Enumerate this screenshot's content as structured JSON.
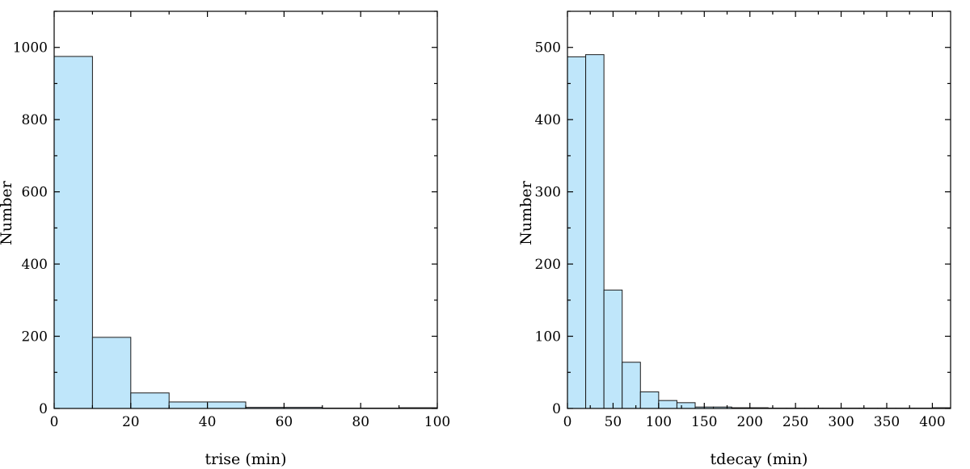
{
  "chart_data": [
    {
      "type": "bar",
      "xlabel": "trise (min)",
      "ylabel": "Number",
      "xlim": [
        0,
        100
      ],
      "ylim": [
        0,
        1100
      ],
      "xticks": [
        0,
        20,
        40,
        60,
        80,
        100
      ],
      "yticks": [
        0,
        200,
        400,
        600,
        800,
        1000
      ],
      "bin_width": 10,
      "bins": [
        {
          "x0": 0,
          "value": 975
        },
        {
          "x0": 10,
          "value": 197
        },
        {
          "x0": 20,
          "value": 43
        },
        {
          "x0": 30,
          "value": 18
        },
        {
          "x0": 40,
          "value": 18
        },
        {
          "x0": 50,
          "value": 3
        },
        {
          "x0": 60,
          "value": 3
        },
        {
          "x0": 70,
          "value": 1
        },
        {
          "x0": 80,
          "value": 1
        },
        {
          "x0": 90,
          "value": 2
        }
      ],
      "grid": false
    },
    {
      "type": "bar",
      "xlabel": "tdecay (min)",
      "ylabel": "Number",
      "xlim": [
        0,
        420
      ],
      "ylim": [
        0,
        550
      ],
      "xticks": [
        0,
        50,
        100,
        150,
        200,
        250,
        300,
        350,
        400
      ],
      "yticks": [
        0,
        100,
        200,
        300,
        400,
        500
      ],
      "bin_width": 20,
      "bins": [
        {
          "x0": 0,
          "value": 487
        },
        {
          "x0": 20,
          "value": 490
        },
        {
          "x0": 40,
          "value": 164
        },
        {
          "x0": 60,
          "value": 64
        },
        {
          "x0": 80,
          "value": 23
        },
        {
          "x0": 100,
          "value": 11
        },
        {
          "x0": 120,
          "value": 8
        },
        {
          "x0": 140,
          "value": 2
        },
        {
          "x0": 160,
          "value": 2
        },
        {
          "x0": 180,
          "value": 1
        },
        {
          "x0": 200,
          "value": 1
        },
        {
          "x0": 220,
          "value": 0.5
        },
        {
          "x0": 240,
          "value": 0.5
        },
        {
          "x0": 260,
          "value": 0.5
        },
        {
          "x0": 280,
          "value": 0.5
        },
        {
          "x0": 300,
          "value": 0.5
        },
        {
          "x0": 320,
          "value": 0.5
        },
        {
          "x0": 340,
          "value": 0.5
        },
        {
          "x0": 360,
          "value": 0.5
        },
        {
          "x0": 380,
          "value": 0.5
        },
        {
          "x0": 400,
          "value": 1
        }
      ],
      "grid": false
    }
  ],
  "colors": {
    "bar_fill": "#bfe6fa",
    "bar_edge": "#1a1a1a",
    "axis": "#000000"
  }
}
